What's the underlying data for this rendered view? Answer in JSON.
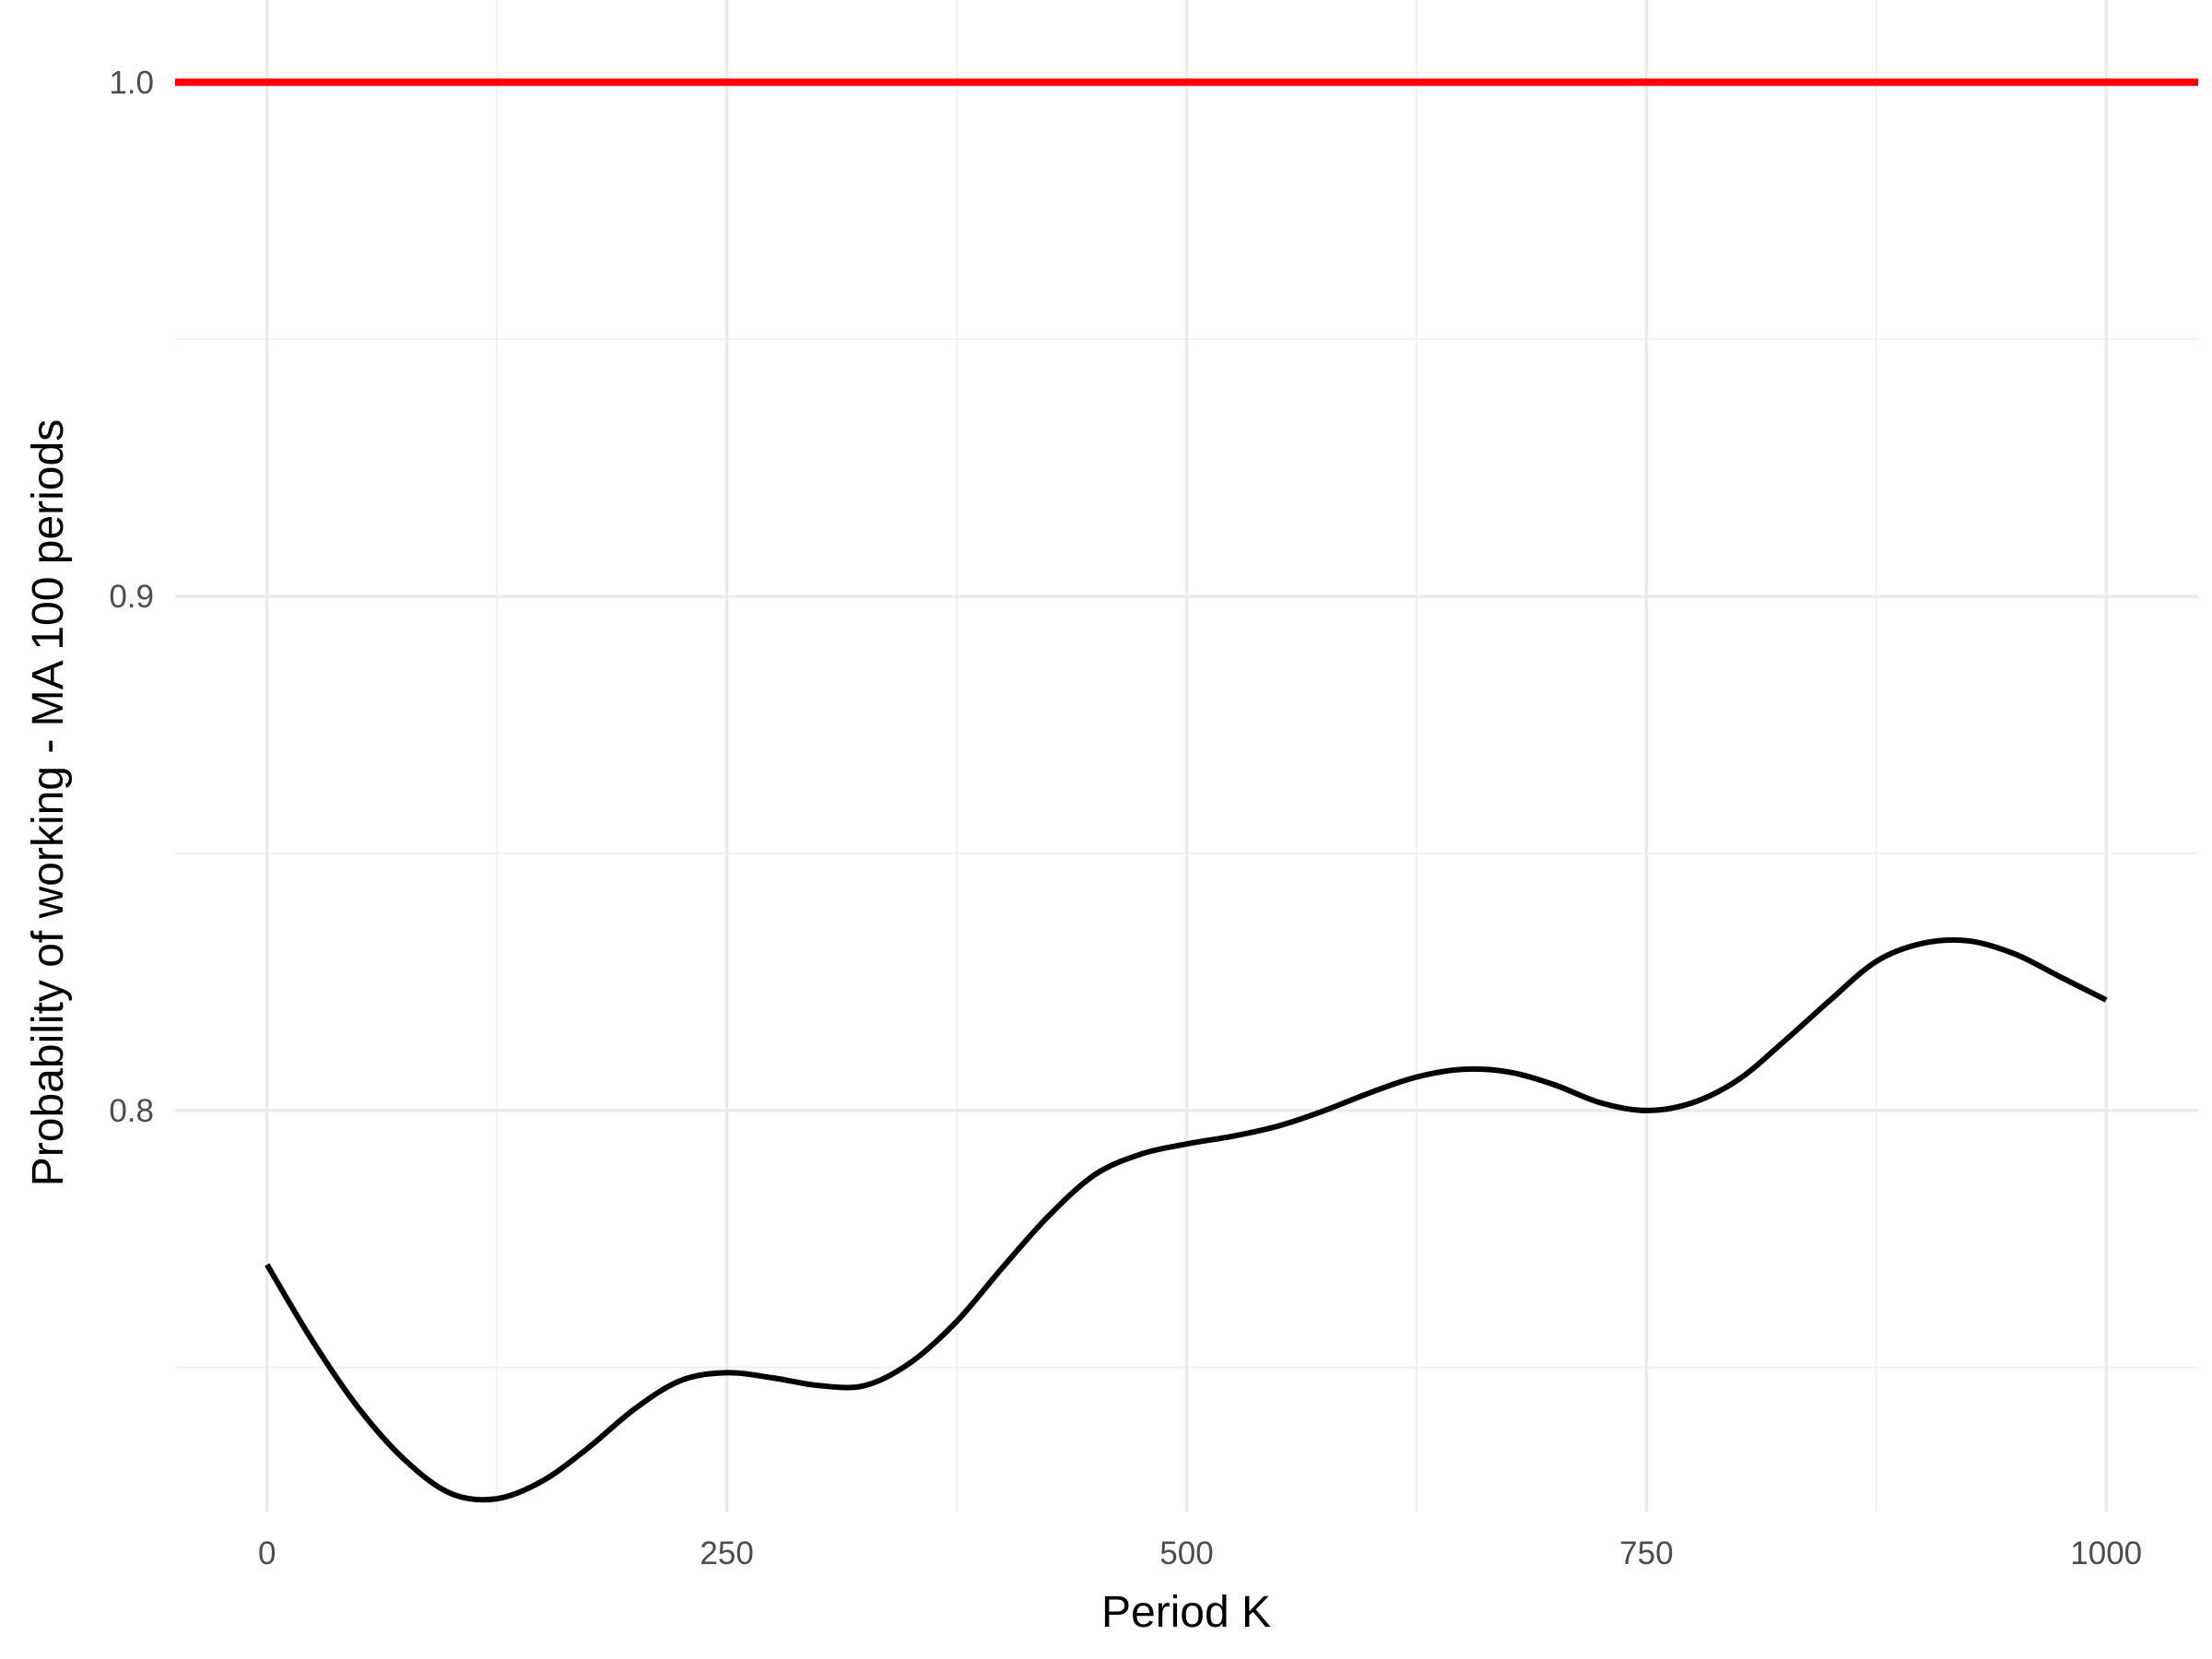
{
  "chart_data": {
    "type": "line",
    "title": "",
    "xlabel": "Period K",
    "ylabel": "Probability of working - MA 100 periods",
    "xlim": [
      -50,
      1050
    ],
    "ylim": [
      0.722,
      1.016
    ],
    "x_ticks": [
      0,
      250,
      500,
      750,
      1000
    ],
    "x_tick_labels": [
      "0",
      "250",
      "500",
      "750",
      "1000"
    ],
    "y_ticks": [
      0.8,
      0.9,
      1.0
    ],
    "y_tick_labels": [
      "0.8",
      "0.9",
      "1.0"
    ],
    "grid": true,
    "legend": "none",
    "reference_line": {
      "y": 1.0,
      "color": "#ff0000"
    },
    "series": [
      {
        "color": "#000000",
        "x": [
          0,
          25,
          50,
          75,
          100,
          125,
          150,
          175,
          200,
          225,
          250,
          275,
          300,
          325,
          350,
          375,
          400,
          425,
          450,
          475,
          500,
          525,
          550,
          575,
          600,
          625,
          650,
          675,
          700,
          725,
          750,
          775,
          800,
          825,
          850,
          875,
          900,
          925,
          950,
          975,
          1000
        ],
        "y": [
          0.77,
          0.755,
          0.742,
          0.732,
          0.7255,
          0.7245,
          0.728,
          0.7345,
          0.742,
          0.7475,
          0.749,
          0.748,
          0.7465,
          0.7465,
          0.751,
          0.759,
          0.7695,
          0.7795,
          0.7875,
          0.7915,
          0.7935,
          0.795,
          0.797,
          0.8,
          0.8035,
          0.8065,
          0.808,
          0.8075,
          0.805,
          0.8015,
          0.8,
          0.8015,
          0.806,
          0.8135,
          0.8215,
          0.829,
          0.8325,
          0.833,
          0.8305,
          0.826,
          0.8215
        ]
      }
    ]
  }
}
